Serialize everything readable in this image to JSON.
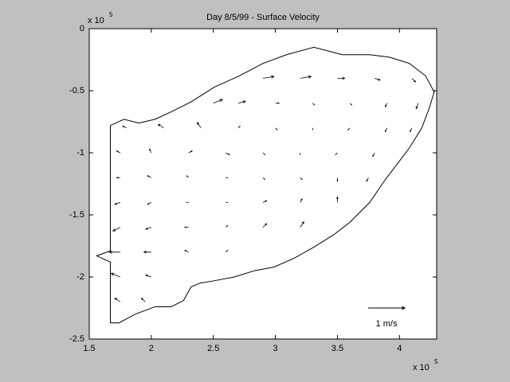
{
  "chart_data": {
    "type": "quiver",
    "title": "Day 8/5/99 - Surface Velocity",
    "xlim": [
      1.5,
      4.3
    ],
    "ylim": [
      -2.5,
      0
    ],
    "xticks": [
      1.5,
      2,
      2.5,
      3,
      3.5,
      4
    ],
    "yticks": [
      0,
      -0.5,
      -1,
      -1.5,
      -2,
      -2.5
    ],
    "x_multiplier": {
      "base": "x 10",
      "exponent": 5
    },
    "y_multiplier": {
      "base": "x 10",
      "exponent": 5
    },
    "color": "#000000",
    "boundary": {
      "x": [
        1.67,
        1.78,
        1.9,
        2.03,
        2.16,
        2.32,
        2.51,
        2.71,
        2.9,
        3.09,
        3.31,
        3.54,
        3.76,
        3.92,
        4.08,
        4.21,
        4.28,
        4.24,
        4.18,
        4.08,
        3.99,
        3.89,
        3.76,
        3.6,
        3.47,
        3.31,
        3.15,
        2.99,
        2.83,
        2.67,
        2.51,
        2.39,
        2.32,
        2.26,
        2.16,
        2.03,
        1.87,
        1.74,
        1.67,
        1.67,
        1.56,
        1.67,
        1.67
      ],
      "y": [
        -0.78,
        -0.73,
        -0.76,
        -0.73,
        -0.67,
        -0.59,
        -0.47,
        -0.38,
        -0.28,
        -0.21,
        -0.15,
        -0.21,
        -0.21,
        -0.23,
        -0.28,
        -0.38,
        -0.51,
        -0.64,
        -0.8,
        -0.96,
        -1.08,
        -1.21,
        -1.4,
        -1.56,
        -1.66,
        -1.76,
        -1.85,
        -1.92,
        -1.95,
        -2.0,
        -2.03,
        -2.05,
        -2.08,
        -2.19,
        -2.24,
        -2.24,
        -2.3,
        -2.37,
        -2.37,
        -1.88,
        -1.83,
        -1.79,
        -0.78
      ]
    },
    "vectors": {
      "x": [
        2.9,
        3.2,
        3.5,
        3.8,
        4.1,
        2.5,
        2.7,
        3.0,
        3.3,
        3.6,
        3.9,
        4.15,
        1.8,
        2.1,
        2.4,
        2.7,
        3.0,
        3.3,
        3.6,
        3.9,
        4.1,
        1.75,
        2.0,
        2.3,
        2.6,
        2.9,
        3.2,
        3.5,
        3.8,
        1.75,
        2.0,
        2.3,
        2.6,
        2.9,
        3.2,
        3.5,
        3.75,
        1.75,
        2.0,
        2.3,
        2.6,
        2.9,
        3.2,
        3.5,
        1.75,
        2.0,
        2.3,
        2.6,
        2.9,
        3.2,
        1.75,
        2.0,
        2.3,
        2.6,
        1.75,
        2.0,
        1.75,
        1.95
      ],
      "y": [
        -0.4,
        -0.4,
        -0.4,
        -0.4,
        -0.4,
        -0.6,
        -0.6,
        -0.6,
        -0.6,
        -0.6,
        -0.6,
        -0.6,
        -0.8,
        -0.8,
        -0.8,
        -0.8,
        -0.8,
        -0.8,
        -0.8,
        -0.8,
        -0.8,
        -1.0,
        -1.0,
        -1.0,
        -1.0,
        -1.0,
        -1.0,
        -1.0,
        -1.0,
        -1.2,
        -1.2,
        -1.2,
        -1.2,
        -1.2,
        -1.2,
        -1.2,
        -1.2,
        -1.4,
        -1.4,
        -1.4,
        -1.4,
        -1.4,
        -1.4,
        -1.4,
        -1.6,
        -1.6,
        -1.6,
        -1.6,
        -1.6,
        -1.6,
        -1.8,
        -1.8,
        -1.8,
        -1.8,
        -2.0,
        -2.0,
        -2.2,
        -2.2
      ],
      "u": [
        0.3,
        0.3,
        0.2,
        0.15,
        0.1,
        0.25,
        0.2,
        0.1,
        0.05,
        0.05,
        -0.05,
        -0.05,
        -0.1,
        -0.15,
        -0.1,
        0.05,
        0.05,
        0.0,
        -0.05,
        -0.05,
        -0.05,
        -0.1,
        -0.05,
        0.1,
        0.1,
        0.05,
        0.0,
        -0.05,
        -0.05,
        -0.1,
        -0.1,
        -0.05,
        0.05,
        0.05,
        0.05,
        0.0,
        -0.05,
        -0.15,
        -0.1,
        -0.05,
        0.05,
        0.1,
        0.05,
        0.0,
        -0.2,
        -0.15,
        -0.1,
        0.05,
        0.1,
        0.1,
        -0.3,
        -0.2,
        -0.1,
        0.05,
        -0.25,
        -0.15,
        -0.15,
        -0.1
      ],
      "v": [
        0.05,
        0.05,
        0,
        -0.05,
        -0.1,
        0.1,
        0.05,
        0,
        -0.05,
        -0.05,
        -0.1,
        -0.15,
        0.05,
        0.1,
        0.15,
        0.05,
        -0.05,
        -0.05,
        -0.05,
        -0.1,
        -0.1,
        0.05,
        0.1,
        0.05,
        -0.05,
        -0.05,
        -0.05,
        -0.05,
        -0.1,
        0.0,
        0.05,
        0.05,
        0.0,
        -0.05,
        -0.05,
        -0.1,
        -0.1,
        -0.05,
        -0.05,
        0,
        0,
        0.05,
        0.1,
        0.15,
        -0.1,
        -0.05,
        0,
        0.05,
        0.1,
        0.15,
        0.0,
        0.0,
        0.05,
        0.05,
        0.1,
        0.05,
        0.1,
        0.1
      ]
    },
    "reference": {
      "value": 1,
      "label": "1 m/s"
    }
  }
}
